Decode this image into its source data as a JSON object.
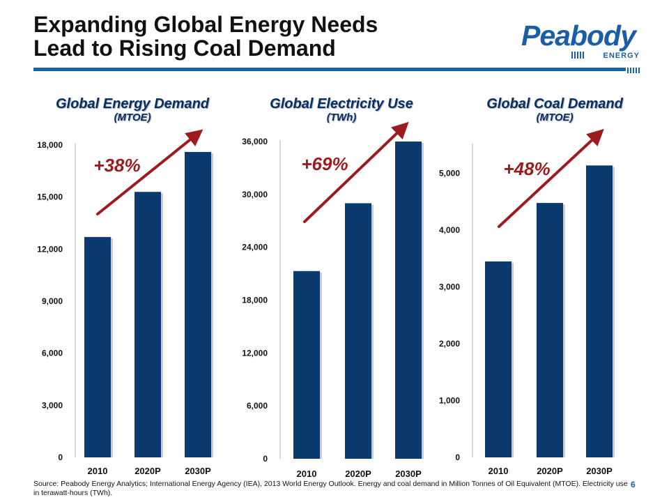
{
  "slide": {
    "title_line1": "Expanding Global Energy Needs",
    "title_line2": "Lead to Rising Coal Demand",
    "logo_text": "Peabody",
    "logo_subtext": "ENERGY",
    "source_note": "Source: Peabody Energy Analytics; International Energy Agency (IEA), 2013 World Energy Outlook. Energy and coal demand in Million Tonnes of Oil Equivalent (MTOE). Electricity use in terawatt-hours (TWh).",
    "page_number": "6",
    "colors": {
      "bar": "#0b3a6e",
      "arrow": "#9b1b1e",
      "accent": "#1b5ea8"
    }
  },
  "chart_data": [
    {
      "type": "bar",
      "title": "Global Energy Demand",
      "subtitle": "(MTOE)",
      "categories": [
        "2010",
        "2020P",
        "2030P"
      ],
      "values": [
        12700,
        15300,
        17600
      ],
      "ylim": [
        0,
        18000
      ],
      "yticks": [
        0,
        3000,
        6000,
        9000,
        12000,
        15000,
        18000
      ],
      "ytick_labels": [
        "0",
        "3,000",
        "6,000",
        "9,000",
        "12,000",
        "15,000",
        "18,000"
      ],
      "annotation": "+38%"
    },
    {
      "type": "bar",
      "title": "Global Electricity Use",
      "subtitle": "(TWh)",
      "categories": [
        "2010",
        "2020P",
        "2030P"
      ],
      "values": [
        21300,
        29000,
        36000
      ],
      "ylim": [
        0,
        36000
      ],
      "yticks": [
        0,
        6000,
        12000,
        18000,
        24000,
        30000,
        36000
      ],
      "ytick_labels": [
        "0",
        "6,000",
        "12,000",
        "18,000",
        "24,000",
        "30,000",
        "36,000"
      ],
      "annotation": "+69%"
    },
    {
      "type": "bar",
      "title": "Global Coal Demand",
      "subtitle": "(MTOE)",
      "categories": [
        "2010",
        "2020P",
        "2030P"
      ],
      "values": [
        3450,
        4480,
        5140
      ],
      "ylim": [
        0,
        5500
      ],
      "yticks": [
        0,
        1000,
        2000,
        3000,
        4000,
        5000
      ],
      "ytick_labels": [
        "0",
        "1,000",
        "2,000",
        "3,000",
        "4,000",
        "5,000"
      ],
      "annotation": "+48%"
    }
  ]
}
